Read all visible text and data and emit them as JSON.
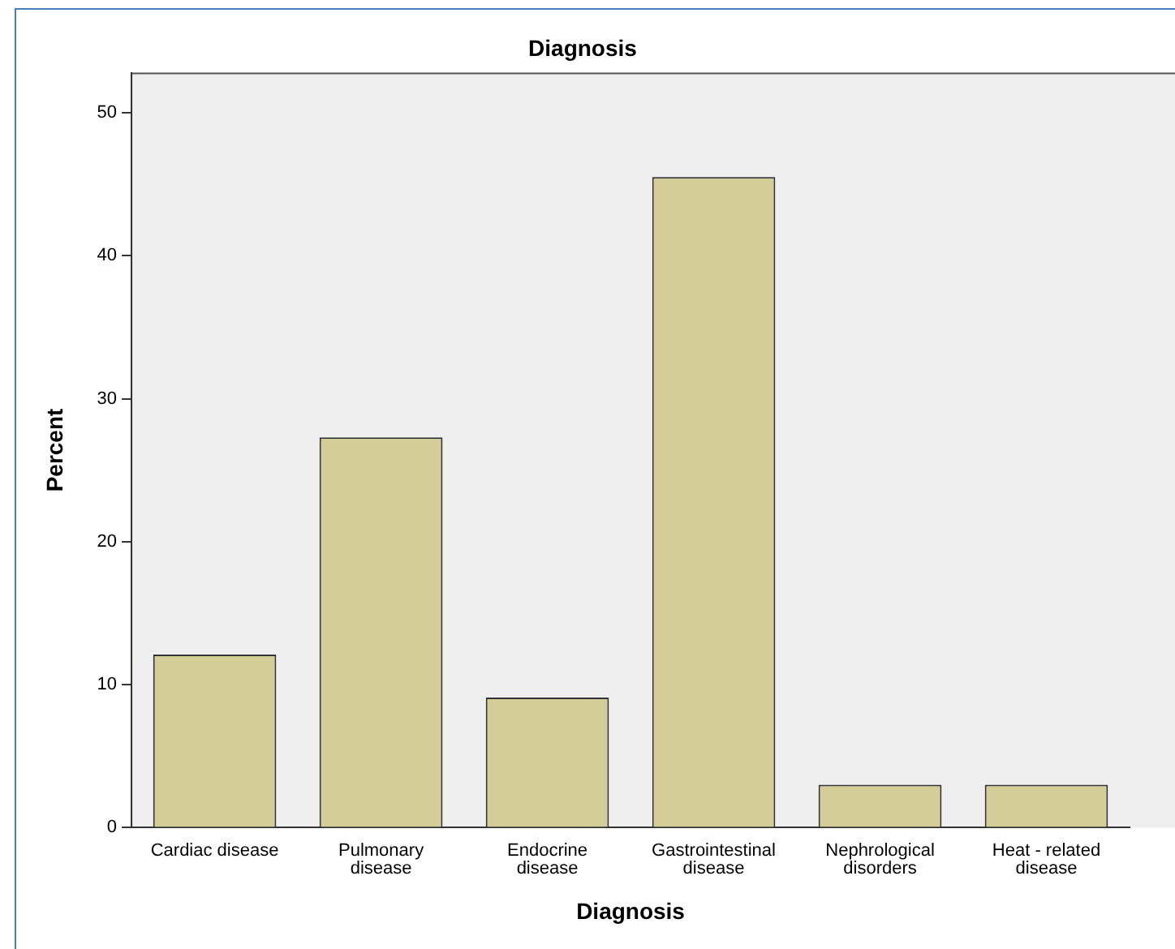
{
  "chart_data": {
    "type": "bar",
    "title": "Diagnosis",
    "xlabel": "Diagnosis",
    "ylabel": "Percent",
    "categories": [
      "Cardiac disease",
      "Pulmonary disease",
      "Endocrine disease",
      "Gastrointestinal disease",
      "Nephrological disorders",
      "Heat - related disease"
    ],
    "values": [
      12.1,
      27.3,
      9.1,
      45.5,
      3.0,
      3.0
    ],
    "color": "#d3ce98",
    "ylim": [
      0,
      52.8
    ],
    "yticks": [
      0,
      10,
      20,
      30,
      40,
      50
    ],
    "grid": false,
    "legend": false
  }
}
